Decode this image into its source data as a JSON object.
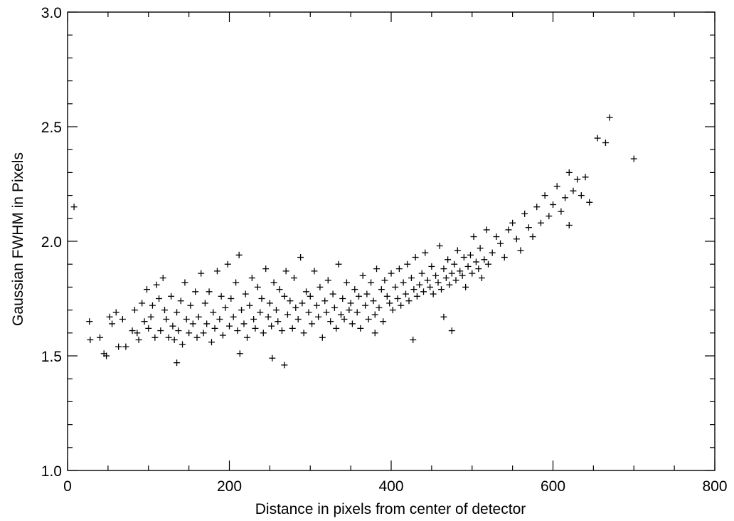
{
  "chart_data": {
    "type": "scatter",
    "title": "",
    "xlabel": "Distance in pixels from center of detector",
    "ylabel": "Gaussian FWHM in Pixels",
    "xlim": [
      0,
      800
    ],
    "ylim": [
      1.0,
      3.0
    ],
    "xticks": [
      0,
      200,
      400,
      600,
      800
    ],
    "xtick_labels": [
      "0",
      "200",
      "400",
      "600",
      "800"
    ],
    "yticks": [
      1.0,
      1.5,
      2.0,
      2.5,
      3.0
    ],
    "ytick_labels": [
      "1.0",
      "1.5",
      "2.0",
      "2.5",
      "3.0"
    ],
    "marker": "plus",
    "marker_color": "#000000",
    "grid": false,
    "legend": "none",
    "series": [
      {
        "x": [
          8,
          27,
          28,
          40,
          45,
          48,
          52,
          55,
          60,
          63,
          68,
          72,
          80,
          83,
          86,
          88,
          92,
          95,
          98,
          100,
          103,
          105,
          108,
          110,
          113,
          115,
          118,
          120,
          122,
          125,
          128,
          130,
          132,
          135,
          137,
          140,
          142,
          145,
          147,
          150,
          152,
          155,
          158,
          160,
          162,
          165,
          168,
          170,
          172,
          175,
          178,
          180,
          182,
          185,
          188,
          190,
          192,
          195,
          198,
          200,
          202,
          205,
          208,
          210,
          212,
          215,
          218,
          220,
          222,
          225,
          228,
          230,
          232,
          235,
          238,
          240,
          242,
          245,
          248,
          250,
          252,
          255,
          258,
          260,
          262,
          265,
          268,
          270,
          272,
          275,
          278,
          280,
          282,
          285,
          288,
          290,
          292,
          295,
          298,
          300,
          302,
          305,
          308,
          310,
          312,
          315,
          318,
          320,
          322,
          325,
          328,
          330,
          332,
          335,
          338,
          340,
          342,
          345,
          348,
          350,
          352,
          355,
          358,
          360,
          362,
          365,
          368,
          370,
          372,
          375,
          378,
          380,
          382,
          385,
          388,
          390,
          392,
          395,
          398,
          400,
          402,
          405,
          408,
          410,
          412,
          415,
          418,
          420,
          422,
          425,
          428,
          430,
          432,
          435,
          438,
          440,
          442,
          445,
          448,
          450,
          452,
          455,
          458,
          460,
          462,
          465,
          468,
          470,
          472,
          475,
          478,
          480,
          482,
          485,
          488,
          490,
          492,
          495,
          498,
          500,
          502,
          505,
          508,
          510,
          512,
          515,
          518,
          520,
          525,
          530,
          535,
          540,
          545,
          550,
          555,
          560,
          565,
          570,
          575,
          580,
          585,
          590,
          595,
          600,
          605,
          610,
          615,
          620,
          625,
          630,
          635,
          640,
          645,
          655,
          665,
          670,
          700,
          135,
          213,
          253,
          268,
          380,
          427,
          465,
          475,
          620
        ],
        "y": [
          2.15,
          1.65,
          1.57,
          1.58,
          1.51,
          1.5,
          1.67,
          1.64,
          1.69,
          1.54,
          1.66,
          1.54,
          1.61,
          1.7,
          1.6,
          1.57,
          1.73,
          1.65,
          1.79,
          1.62,
          1.67,
          1.72,
          1.58,
          1.81,
          1.75,
          1.61,
          1.84,
          1.7,
          1.66,
          1.58,
          1.76,
          1.63,
          1.57,
          1.69,
          1.61,
          1.74,
          1.55,
          1.82,
          1.66,
          1.6,
          1.72,
          1.64,
          1.78,
          1.58,
          1.67,
          1.86,
          1.6,
          1.73,
          1.64,
          1.78,
          1.56,
          1.69,
          1.62,
          1.87,
          1.66,
          1.76,
          1.59,
          1.71,
          1.9,
          1.63,
          1.75,
          1.67,
          1.82,
          1.61,
          1.94,
          1.7,
          1.64,
          1.77,
          1.58,
          1.72,
          1.84,
          1.66,
          1.62,
          1.8,
          1.69,
          1.75,
          1.6,
          1.88,
          1.67,
          1.73,
          1.63,
          1.82,
          1.7,
          1.65,
          1.79,
          1.61,
          1.76,
          1.87,
          1.68,
          1.74,
          1.62,
          1.84,
          1.71,
          1.66,
          1.93,
          1.73,
          1.6,
          1.78,
          1.69,
          1.76,
          1.64,
          1.87,
          1.72,
          1.67,
          1.8,
          1.58,
          1.74,
          1.69,
          1.83,
          1.65,
          1.77,
          1.71,
          1.62,
          1.9,
          1.68,
          1.75,
          1.66,
          1.82,
          1.7,
          1.73,
          1.64,
          1.79,
          1.69,
          1.76,
          1.62,
          1.85,
          1.72,
          1.77,
          1.66,
          1.82,
          1.74,
          1.68,
          1.88,
          1.71,
          1.79,
          1.65,
          1.83,
          1.76,
          1.73,
          1.86,
          1.7,
          1.8,
          1.75,
          1.88,
          1.72,
          1.82,
          1.77,
          1.9,
          1.74,
          1.84,
          1.79,
          1.93,
          1.76,
          1.81,
          1.86,
          1.78,
          1.95,
          1.83,
          1.8,
          1.89,
          1.77,
          1.85,
          1.82,
          1.98,
          1.79,
          1.88,
          1.84,
          1.92,
          1.81,
          1.86,
          1.9,
          1.83,
          1.96,
          1.87,
          1.85,
          1.93,
          1.8,
          1.89,
          1.94,
          1.86,
          2.02,
          1.91,
          1.88,
          1.97,
          1.84,
          1.92,
          2.05,
          1.9,
          1.95,
          2.02,
          1.99,
          1.93,
          2.05,
          2.08,
          2.01,
          1.96,
          2.12,
          2.06,
          2.02,
          2.15,
          2.08,
          2.2,
          2.11,
          2.16,
          2.24,
          2.13,
          2.19,
          2.3,
          2.22,
          2.27,
          2.2,
          2.28,
          2.17,
          2.45,
          2.43,
          2.54,
          2.36,
          1.47,
          1.51,
          1.49,
          1.46,
          1.6,
          1.57,
          1.67,
          1.61,
          2.07
        ]
      }
    ]
  }
}
